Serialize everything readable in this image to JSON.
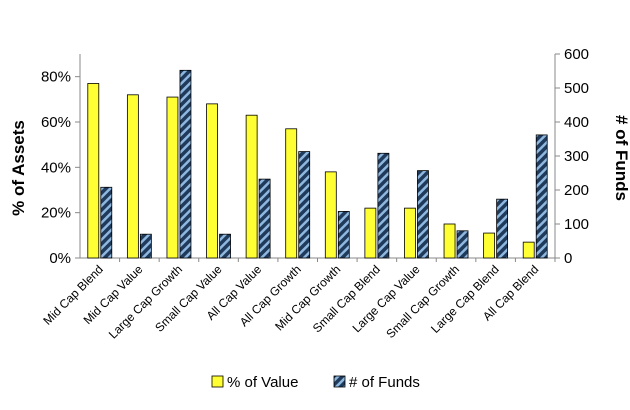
{
  "chart_data": {
    "type": "bar",
    "categories": [
      "Mid Cap Blend",
      "Mid Cap Value",
      "Large Cap Growth",
      "Small Cap Value",
      "All Cap Value",
      "All Cap Growth",
      "Mid Cap Growth",
      "Small Cap Blend",
      "Large Cap Value",
      "Small Cap Growth",
      "Large Cap Blend",
      "All Cap Blend"
    ],
    "series": [
      {
        "name": "% of Value",
        "axis": "left",
        "values": [
          77,
          72,
          71,
          68,
          63,
          57,
          38,
          22,
          22,
          15,
          11,
          7
        ],
        "color": "#ffff33"
      },
      {
        "name": "# of Funds",
        "axis": "right",
        "values": [
          208,
          70,
          552,
          70,
          232,
          313,
          137,
          308,
          257,
          80,
          173,
          362
        ],
        "color": "#1f3a5a"
      }
    ],
    "ylabel_left": "% of Assets",
    "ylabel_right": "# of Funds",
    "ylim_left": [
      0,
      90
    ],
    "ylim_right": [
      0,
      600
    ],
    "yticks_left": [
      "0%",
      "20%",
      "40%",
      "60%",
      "80%"
    ],
    "yticks_left_values": [
      0,
      20,
      40,
      60,
      80
    ],
    "yticks_right": [
      "0",
      "100",
      "200",
      "300",
      "400",
      "500",
      "600"
    ],
    "yticks_right_values": [
      0,
      100,
      200,
      300,
      400,
      500,
      600
    ],
    "grid": false,
    "legend_position": "bottom"
  }
}
